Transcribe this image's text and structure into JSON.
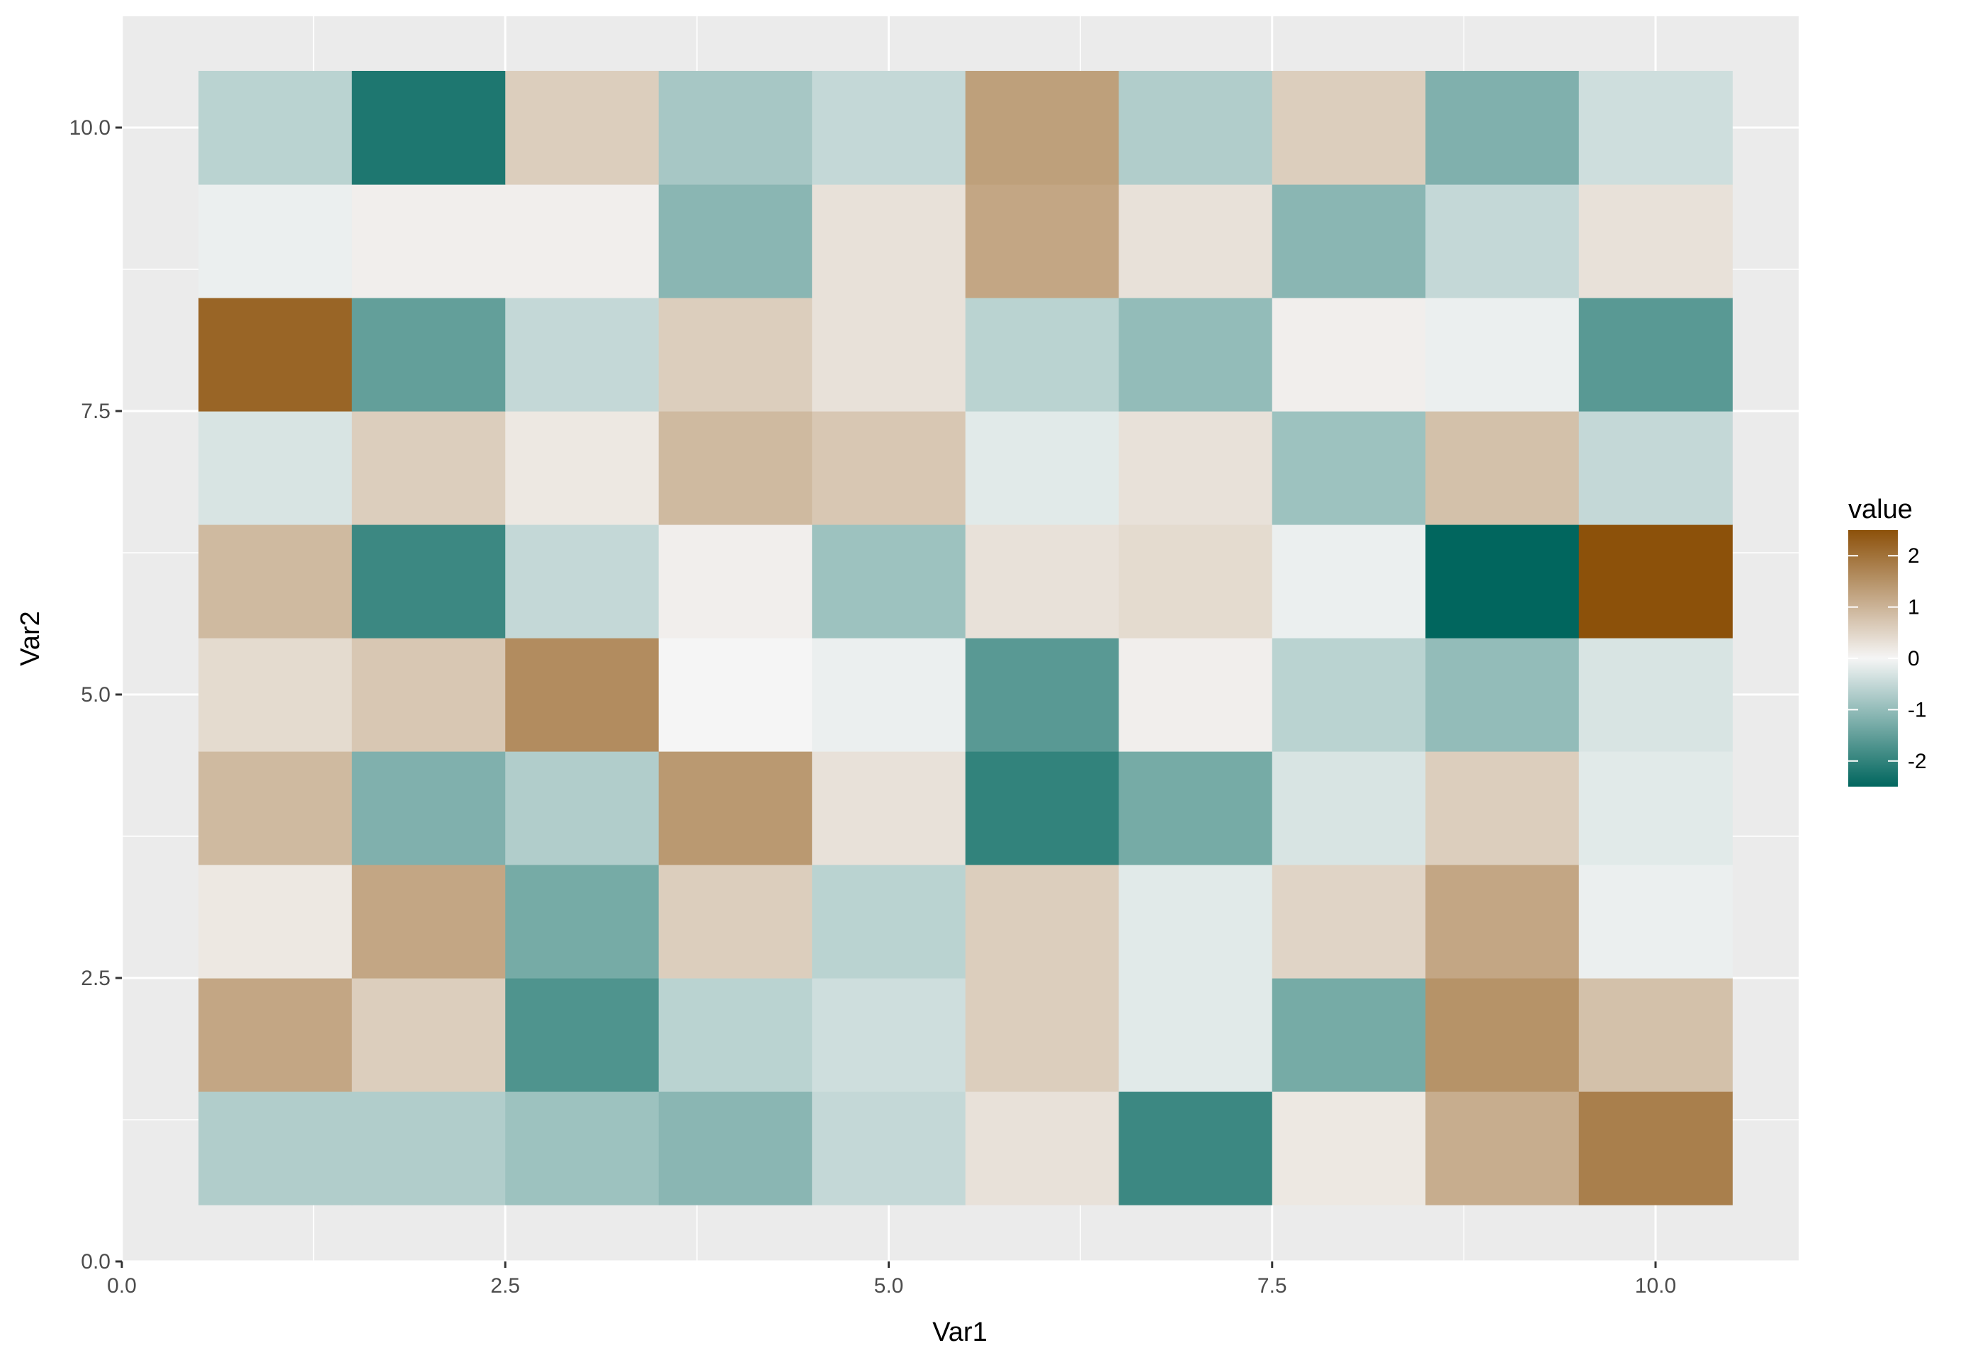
{
  "chart_data": {
    "type": "heatmap",
    "xlabel": "Var1",
    "ylabel": "Var2",
    "xlim": [
      0,
      10.5
    ],
    "ylim": [
      0,
      10.5
    ],
    "x_ticks": [
      0,
      2.5,
      5,
      7.5,
      10
    ],
    "x_tick_labels": [
      "0.0",
      "2.5",
      "5.0",
      "7.5",
      "10.0"
    ],
    "y_ticks": [
      0,
      2.5,
      5,
      7.5,
      10
    ],
    "y_tick_labels": [
      "0.0",
      "2.5",
      "5.0",
      "7.5",
      "10.0"
    ],
    "x": [
      1,
      2,
      3,
      4,
      5,
      6,
      7,
      8,
      9,
      10
    ],
    "y": [
      1,
      2,
      3,
      4,
      5,
      6,
      7,
      8,
      9,
      10
    ],
    "values": [
      [
        -0.7,
        -0.7,
        -0.9,
        -1.1,
        -0.5,
        0.3,
        -1.9,
        0.2,
        1.1,
        1.8
      ],
      [
        1.2,
        0.6,
        -1.7,
        -0.6,
        -0.4,
        0.6,
        -0.2,
        -1.3,
        1.5,
        0.8
      ],
      [
        0.2,
        1.2,
        -1.3,
        0.6,
        -0.6,
        0.6,
        -0.2,
        0.5,
        1.2,
        -0.1
      ],
      [
        0.9,
        -1.2,
        -0.7,
        1.4,
        0.3,
        -2.0,
        -1.3,
        -0.3,
        0.6,
        -0.2
      ],
      [
        0.4,
        0.7,
        1.6,
        0.0,
        -0.1,
        -1.6,
        0.1,
        -0.6,
        -1.0,
        -0.3
      ],
      [
        0.9,
        -1.9,
        -0.5,
        0.1,
        -0.9,
        0.3,
        0.4,
        -0.1,
        -2.5,
        2.5
      ],
      [
        -0.3,
        0.6,
        0.2,
        0.9,
        0.7,
        -0.2,
        0.3,
        -0.9,
        0.8,
        -0.5
      ],
      [
        2.2,
        -1.5,
        -0.5,
        0.6,
        0.3,
        -0.6,
        -1.0,
        0.1,
        -0.1,
        -1.6
      ],
      [
        -0.1,
        0.1,
        0.1,
        -1.1,
        0.3,
        1.2,
        0.3,
        -1.1,
        -0.5,
        0.3
      ],
      [
        -0.6,
        -2.2,
        0.6,
        -0.8,
        -0.5,
        1.3,
        -0.7,
        0.6,
        -1.2,
        -0.4
      ]
    ],
    "legend": {
      "title": "value",
      "ticks": [
        2,
        1,
        0,
        -1,
        -2
      ],
      "tick_labels": [
        "2",
        "1",
        "0",
        "-1",
        "-2"
      ],
      "limits": [
        -2.5,
        2.5
      ],
      "placement": "right"
    },
    "colors": {
      "low": "#01665e",
      "mid": "#f5f5f5",
      "high": "#8c510a",
      "panel_background": "#ebebeb",
      "grid": "#ffffff"
    },
    "grid": true
  }
}
